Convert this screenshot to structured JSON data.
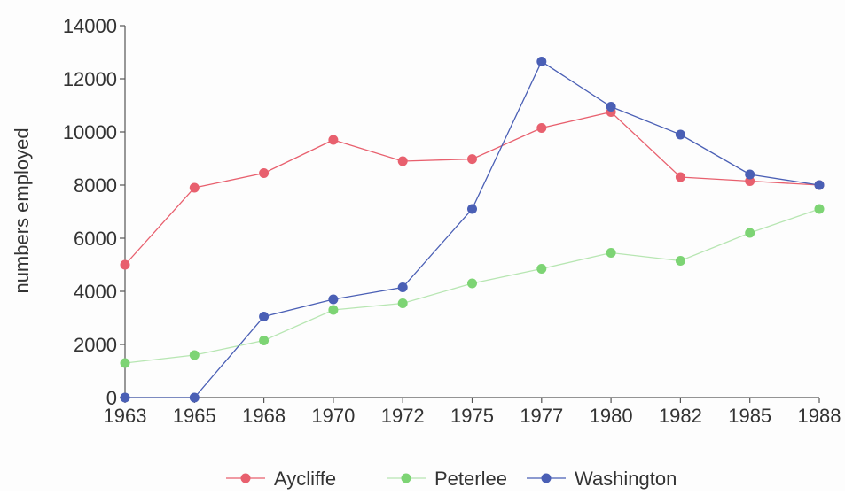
{
  "chart_data": {
    "type": "line",
    "title": "",
    "xlabel": "",
    "ylabel": "numbers employed",
    "categories": [
      "1963",
      "1965",
      "1968",
      "1970",
      "1972",
      "1975",
      "1977",
      "1980",
      "1982",
      "1985",
      "1988"
    ],
    "ylim": [
      0,
      14000
    ],
    "yticks": [
      "0",
      "2000",
      "4000",
      "6000",
      "8000",
      "10000",
      "12000",
      "14000"
    ],
    "grid": false,
    "legend_position": "bottom",
    "series": [
      {
        "name": "Aycliffe",
        "color": "#e8606e",
        "values": [
          5000,
          7900,
          8450,
          9700,
          8900,
          8980,
          10150,
          10750,
          8300,
          8150,
          8000
        ]
      },
      {
        "name": "Peterlee",
        "color": "#7dd474",
        "values": [
          1300,
          1600,
          2150,
          3300,
          3550,
          4300,
          4850,
          5450,
          5150,
          6200,
          7100
        ]
      },
      {
        "name": "Washington",
        "color": "#4a5fb5",
        "values": [
          0,
          0,
          3050,
          3700,
          4150,
          7100,
          12650,
          10950,
          9900,
          8400,
          8000
        ]
      }
    ]
  }
}
